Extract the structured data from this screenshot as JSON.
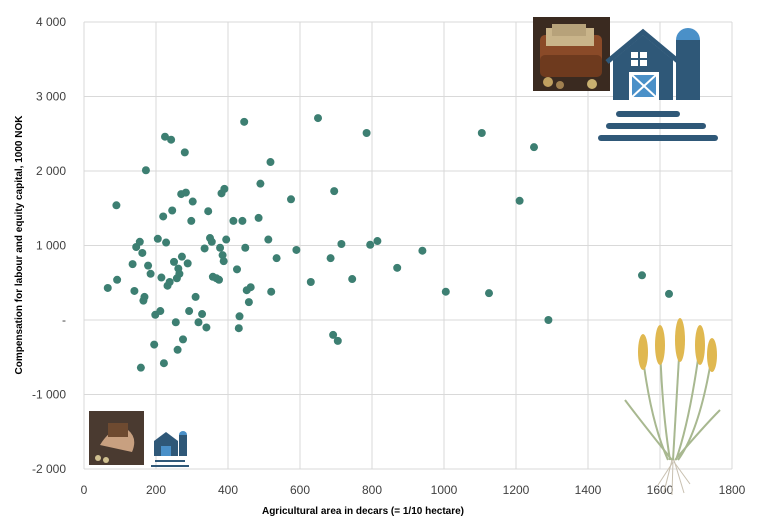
{
  "chart_data": {
    "type": "scatter",
    "xlabel": "Agricultural area in decars (=  1/10 hectare)",
    "ylabel": "Compensation for labour and equity capital,  1000 NOK",
    "xlim": [
      0,
      1800
    ],
    "ylim": [
      -2000,
      4000
    ],
    "x_ticks": [
      0,
      200,
      400,
      600,
      800,
      1000,
      1200,
      1400,
      1600,
      1800
    ],
    "y_ticks": [
      -2000,
      -1000,
      0,
      1000,
      2000,
      3000,
      4000
    ],
    "x_tick_labels": [
      "0",
      "200",
      "400",
      "600",
      "800",
      "1000",
      "1200",
      "1400",
      "1600",
      "1800"
    ],
    "y_tick_labels": [
      "-2 000",
      "-1 000",
      "-",
      "1 000",
      "2 000",
      "3 000",
      "4 000"
    ],
    "grid": "vertical and horizontal gridlines",
    "marker_color": "#3d7f72",
    "points": [
      {
        "x": 66,
        "y": 430
      },
      {
        "x": 90,
        "y": 1540
      },
      {
        "x": 92,
        "y": 540
      },
      {
        "x": 135,
        "y": 750
      },
      {
        "x": 140,
        "y": 390
      },
      {
        "x": 145,
        "y": 980
      },
      {
        "x": 155,
        "y": 1050
      },
      {
        "x": 158,
        "y": -640
      },
      {
        "x": 162,
        "y": 900
      },
      {
        "x": 165,
        "y": 260
      },
      {
        "x": 168,
        "y": 310
      },
      {
        "x": 172,
        "y": 2010
      },
      {
        "x": 178,
        "y": 730
      },
      {
        "x": 185,
        "y": 620
      },
      {
        "x": 195,
        "y": -330
      },
      {
        "x": 198,
        "y": 70
      },
      {
        "x": 205,
        "y": 1090
      },
      {
        "x": 212,
        "y": 120
      },
      {
        "x": 215,
        "y": 570
      },
      {
        "x": 220,
        "y": 1390
      },
      {
        "x": 222,
        "y": -580
      },
      {
        "x": 225,
        "y": 2460
      },
      {
        "x": 228,
        "y": 1040
      },
      {
        "x": 232,
        "y": 460
      },
      {
        "x": 238,
        "y": 510
      },
      {
        "x": 242,
        "y": 2420
      },
      {
        "x": 245,
        "y": 1470
      },
      {
        "x": 250,
        "y": 780
      },
      {
        "x": 255,
        "y": -30
      },
      {
        "x": 258,
        "y": 560
      },
      {
        "x": 260,
        "y": -400
      },
      {
        "x": 262,
        "y": 690
      },
      {
        "x": 265,
        "y": 620
      },
      {
        "x": 270,
        "y": 1690
      },
      {
        "x": 272,
        "y": 850
      },
      {
        "x": 275,
        "y": -260
      },
      {
        "x": 280,
        "y": 2250
      },
      {
        "x": 283,
        "y": 1710
      },
      {
        "x": 288,
        "y": 760
      },
      {
        "x": 292,
        "y": 120
      },
      {
        "x": 298,
        "y": 1330
      },
      {
        "x": 302,
        "y": 1590
      },
      {
        "x": 310,
        "y": 310
      },
      {
        "x": 318,
        "y": -30
      },
      {
        "x": 328,
        "y": 80
      },
      {
        "x": 335,
        "y": 960
      },
      {
        "x": 340,
        "y": -100
      },
      {
        "x": 345,
        "y": 1460
      },
      {
        "x": 350,
        "y": 1100
      },
      {
        "x": 355,
        "y": 1050
      },
      {
        "x": 358,
        "y": 580
      },
      {
        "x": 368,
        "y": 560
      },
      {
        "x": 375,
        "y": 540
      },
      {
        "x": 378,
        "y": 970
      },
      {
        "x": 382,
        "y": 1700
      },
      {
        "x": 385,
        "y": 870
      },
      {
        "x": 388,
        "y": 790
      },
      {
        "x": 390,
        "y": 1760
      },
      {
        "x": 395,
        "y": 1080
      },
      {
        "x": 415,
        "y": 1330
      },
      {
        "x": 425,
        "y": 680
      },
      {
        "x": 430,
        "y": -110
      },
      {
        "x": 432,
        "y": 50
      },
      {
        "x": 440,
        "y": 1330
      },
      {
        "x": 445,
        "y": 2660
      },
      {
        "x": 448,
        "y": 970
      },
      {
        "x": 452,
        "y": 400
      },
      {
        "x": 458,
        "y": 240
      },
      {
        "x": 463,
        "y": 440
      },
      {
        "x": 485,
        "y": 1370
      },
      {
        "x": 490,
        "y": 1830
      },
      {
        "x": 512,
        "y": 1080
      },
      {
        "x": 518,
        "y": 2120
      },
      {
        "x": 520,
        "y": 380
      },
      {
        "x": 535,
        "y": 830
      },
      {
        "x": 575,
        "y": 1620
      },
      {
        "x": 590,
        "y": 940
      },
      {
        "x": 630,
        "y": 510
      },
      {
        "x": 650,
        "y": 2710
      },
      {
        "x": 685,
        "y": 830
      },
      {
        "x": 692,
        "y": -200
      },
      {
        "x": 695,
        "y": 1730
      },
      {
        "x": 705,
        "y": -280
      },
      {
        "x": 715,
        "y": 1020
      },
      {
        "x": 745,
        "y": 550
      },
      {
        "x": 785,
        "y": 2510
      },
      {
        "x": 795,
        "y": 1010
      },
      {
        "x": 815,
        "y": 1060
      },
      {
        "x": 870,
        "y": 700
      },
      {
        "x": 940,
        "y": 930
      },
      {
        "x": 1005,
        "y": 380
      },
      {
        "x": 1105,
        "y": 2510
      },
      {
        "x": 1125,
        "y": 360
      },
      {
        "x": 1210,
        "y": 1600
      },
      {
        "x": 1250,
        "y": 2320
      },
      {
        "x": 1290,
        "y": 0
      },
      {
        "x": 1550,
        "y": 600
      },
      {
        "x": 1625,
        "y": 350
      }
    ]
  }
}
